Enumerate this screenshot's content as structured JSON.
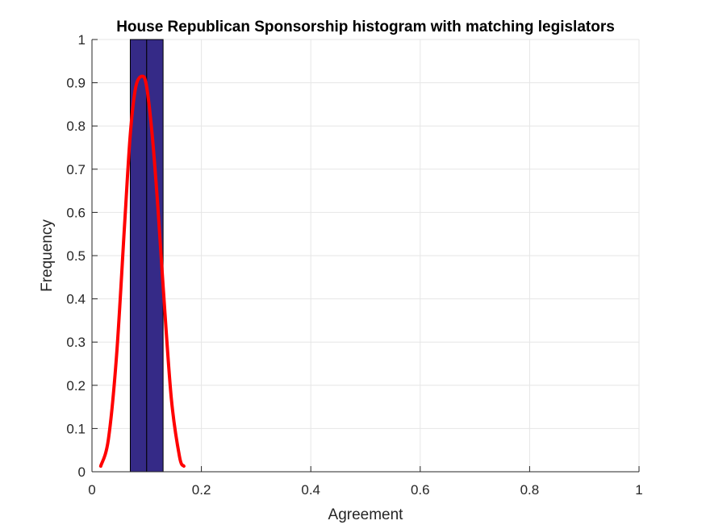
{
  "chart_data": {
    "type": "bar",
    "title": "House Republican Sponsorship histogram with matching legislators",
    "xlabel": "Agreement",
    "ylabel": "Frequency",
    "xlim": [
      0,
      1
    ],
    "ylim": [
      0,
      1
    ],
    "grid": true,
    "xticks": [
      0,
      0.2,
      0.4,
      0.6,
      0.8,
      1
    ],
    "xtick_labels": [
      "0",
      "0.2",
      "0.4",
      "0.6",
      "0.8",
      "1"
    ],
    "yticks": [
      0,
      0.1,
      0.2,
      0.3,
      0.4,
      0.5,
      0.6,
      0.7,
      0.8,
      0.9,
      1
    ],
    "ytick_labels": [
      "0",
      "0.1",
      "0.2",
      "0.3",
      "0.4",
      "0.5",
      "0.6",
      "0.7",
      "0.8",
      "0.9",
      "1"
    ],
    "bins": [
      {
        "x0": 0.07,
        "x1": 0.1,
        "value": 1
      },
      {
        "x0": 0.1,
        "x1": 0.13,
        "value": 1
      }
    ],
    "fit_curve": {
      "peak_x": 0.092,
      "peak_y": 0.915,
      "x": [
        0.016,
        0.03,
        0.045,
        0.06,
        0.07,
        0.08,
        0.092,
        0.1,
        0.11,
        0.12,
        0.13,
        0.145,
        0.16,
        0.168
      ],
      "y": [
        0.013,
        0.075,
        0.27,
        0.58,
        0.78,
        0.89,
        0.915,
        0.89,
        0.78,
        0.62,
        0.43,
        0.17,
        0.035,
        0.013
      ]
    },
    "colors": {
      "bar_fill": "#352a87",
      "bar_edge": "#000000",
      "curve": "#ff0000",
      "grid": "#e6e6e6",
      "axis": "#262626"
    }
  }
}
